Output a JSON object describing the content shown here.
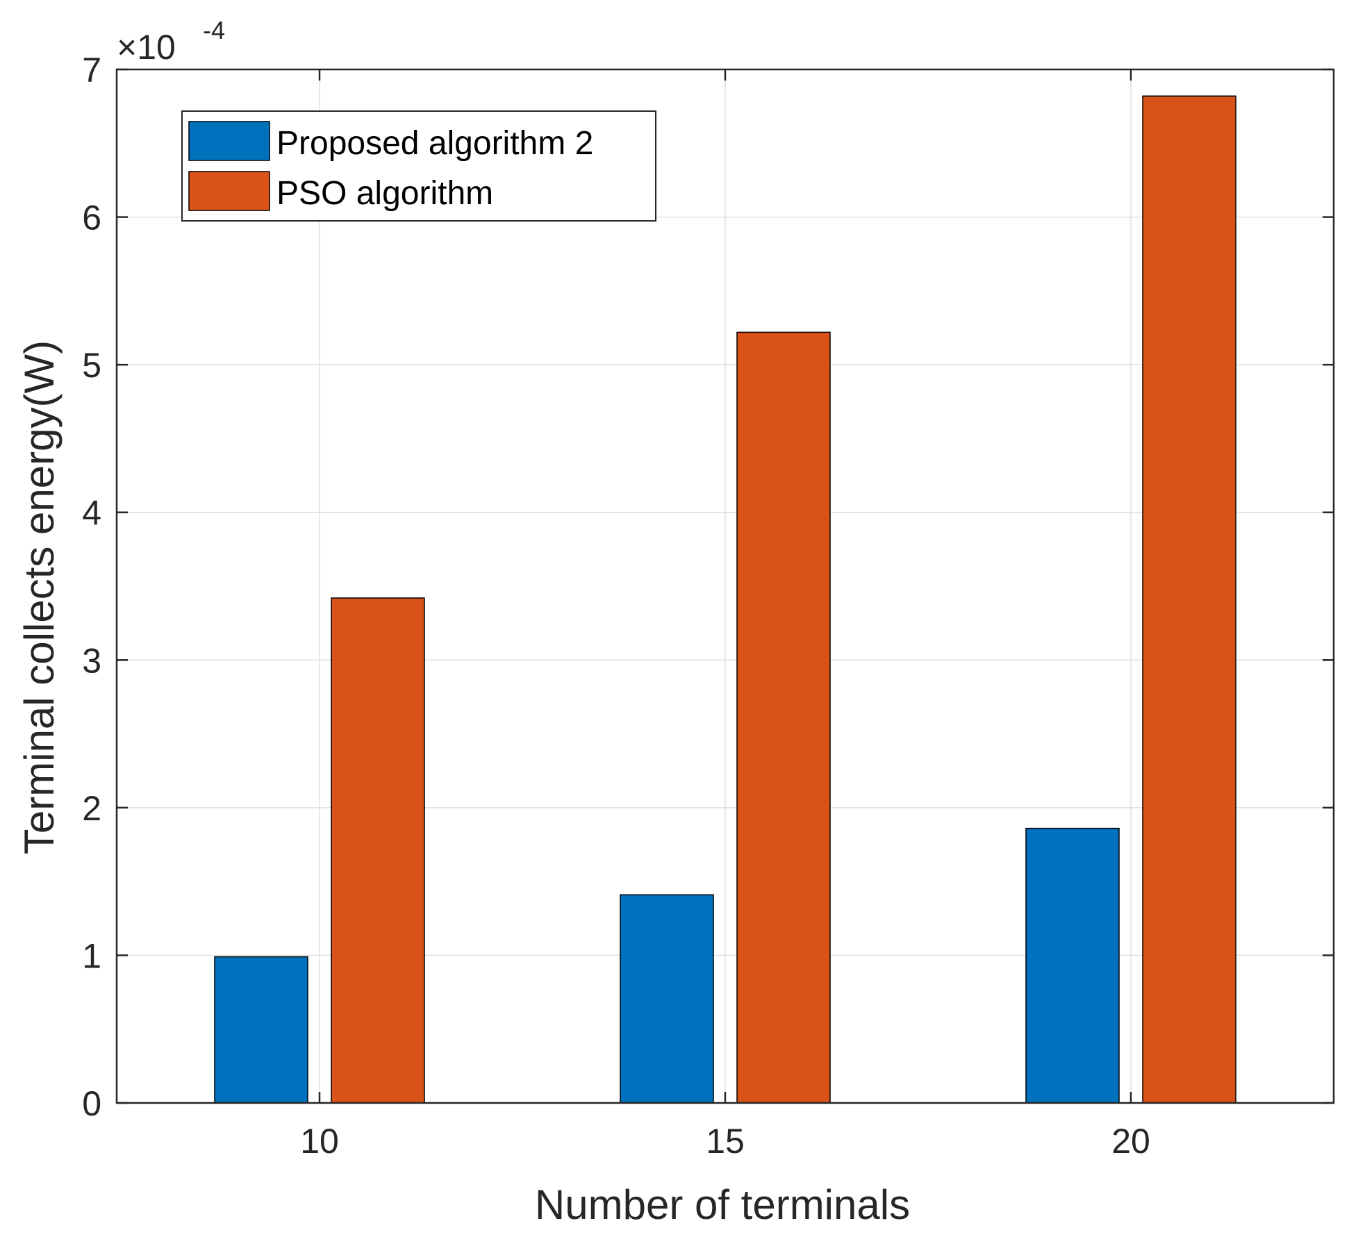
{
  "chart_data": {
    "type": "bar",
    "title": "",
    "xlabel": "Number of terminals",
    "ylabel": "Terminal collects energy(W)",
    "categories": [
      "10",
      "15",
      "20"
    ],
    "series": [
      {
        "name": "Proposed algorithm 2",
        "color": "#0072BD",
        "values": [
          0.99,
          1.41,
          1.86
        ]
      },
      {
        "name": "PSO algorithm",
        "color": "#D95319",
        "values": [
          3.42,
          5.22,
          6.82
        ]
      }
    ],
    "ylim": [
      0,
      7
    ],
    "yticks": [
      "0",
      "1",
      "2",
      "3",
      "4",
      "5",
      "6",
      "7"
    ],
    "y_exponent_base": "×10",
    "y_exponent": "-4",
    "grid": true,
    "legend_position": "top-left"
  }
}
